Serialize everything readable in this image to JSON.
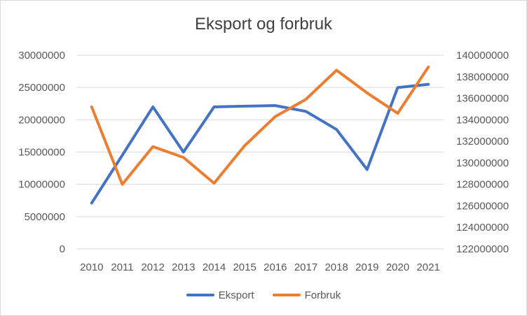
{
  "chart_data": {
    "type": "line",
    "title": "Eksport og forbruk",
    "categories": [
      "2010",
      "2011",
      "2012",
      "2013",
      "2014",
      "2015",
      "2016",
      "2017",
      "2018",
      "2019",
      "2020",
      "2021"
    ],
    "series": [
      {
        "name": "Eksport",
        "axis": "left",
        "color": "#4472C4",
        "values": [
          7100000,
          14500000,
          22000000,
          15000000,
          22000000,
          22100000,
          22200000,
          21300000,
          18500000,
          12300000,
          25000000,
          25500000
        ]
      },
      {
        "name": "Forbruk",
        "axis": "right",
        "color": "#ED7D31",
        "values": [
          135200000,
          128000000,
          131500000,
          130500000,
          128100000,
          131600000,
          134300000,
          135900000,
          138600000,
          136500000,
          134600000,
          138900000
        ]
      }
    ],
    "y_left": {
      "min": 0,
      "max": 30000000,
      "ticks": [
        "0",
        "5000000",
        "10000000",
        "15000000",
        "20000000",
        "25000000",
        "30000000"
      ],
      "tick_values": [
        0,
        5000000,
        10000000,
        15000000,
        20000000,
        25000000,
        30000000
      ]
    },
    "y_right": {
      "min": 122000000,
      "max": 140000000,
      "ticks": [
        "122000000",
        "124000000",
        "126000000",
        "128000000",
        "130000000",
        "132000000",
        "134000000",
        "136000000",
        "138000000",
        "140000000"
      ],
      "tick_values": [
        122000000,
        124000000,
        126000000,
        128000000,
        130000000,
        132000000,
        134000000,
        136000000,
        138000000,
        140000000
      ]
    },
    "grid": true,
    "gridline_color": "#d9d9d9",
    "legend_position": "bottom"
  },
  "legend": {
    "eksport_label": "Eksport",
    "forbruk_label": "Forbruk"
  }
}
